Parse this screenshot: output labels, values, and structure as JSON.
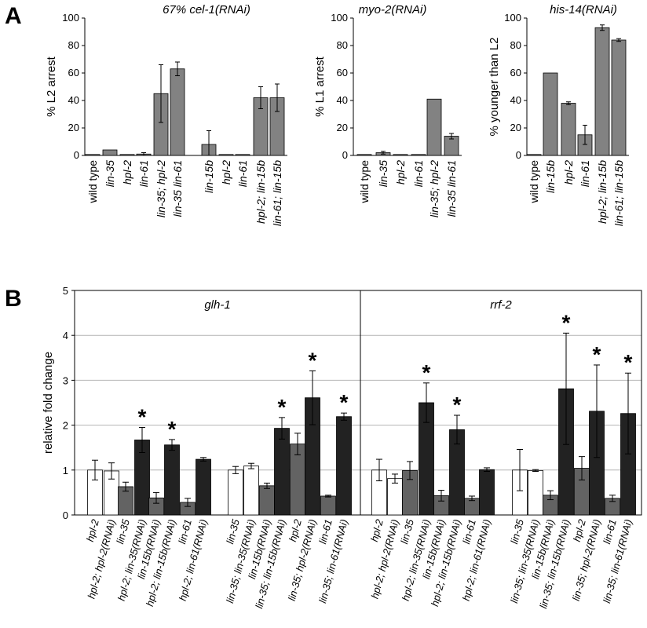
{
  "panel_labels": {
    "a": "A",
    "b": "B"
  },
  "chart_data": [
    {
      "id": "A1",
      "type": "bar",
      "title": "67% cel-1(RNAi)",
      "ylabel": "% L2 arrest",
      "ylim": [
        0,
        100
      ],
      "yticks": [
        "0",
        "20",
        "40",
        "60",
        "80",
        "100"
      ],
      "categories": [
        "wild type",
        "lin-35",
        "hpl-2",
        "lin-61",
        "lin-35; hpl-2",
        "lin-35 lin-61",
        "lin-15b",
        "hpl-2",
        "lin-61",
        "hpl-2; lin-15b",
        "lin-61; lin-15b"
      ],
      "values": [
        0,
        4,
        0,
        1,
        45,
        63,
        8,
        0,
        0,
        42,
        42
      ],
      "errors": [
        0,
        0,
        0,
        1,
        21,
        5,
        10,
        0,
        0,
        8,
        10
      ],
      "grid": false
    },
    {
      "id": "A2",
      "type": "bar",
      "title": "myo-2(RNAi)",
      "ylabel": "% L1 arrest",
      "ylim": [
        0,
        100
      ],
      "yticks": [
        "0",
        "20",
        "40",
        "60",
        "80",
        "100"
      ],
      "categories": [
        "wild type",
        "lin-35",
        "hpl-2",
        "lin-61",
        "lin-35; hpl-2",
        "lin-35 lin-61"
      ],
      "values": [
        0,
        2,
        0,
        0,
        41,
        14
      ],
      "errors": [
        0,
        1,
        0,
        0,
        0,
        2
      ],
      "grid": false
    },
    {
      "id": "A3",
      "type": "bar",
      "title": "his-14(RNAi)",
      "ylabel": "% younger than L2",
      "ylim": [
        0,
        100
      ],
      "yticks": [
        "0",
        "20",
        "40",
        "60",
        "80",
        "100"
      ],
      "categories": [
        "wild type",
        "lin-15b",
        "hpl-2",
        "lin-61",
        "hpl-2; lin-15b",
        "lin-61; lin-15b"
      ],
      "values": [
        0,
        60,
        38,
        15,
        93,
        84
      ],
      "errors": [
        0,
        0,
        1,
        7,
        2,
        1
      ],
      "grid": false
    },
    {
      "id": "B",
      "type": "bar",
      "ylabel": "relative fold change",
      "ylim": [
        0,
        5
      ],
      "yticks": [
        "0",
        "1",
        "2",
        "3",
        "4",
        "5"
      ],
      "grid": true,
      "panels": [
        {
          "title": "glh-1",
          "groups": [
            {
              "categories": [
                "hpl-2",
                "hpl-2; hpl-2(RNAi)",
                "lin-35",
                "hpl-2; lin-35(RNAi)",
                "lin-15b(RNAi)",
                "hpl-2; lin-15b(RNAi)",
                "lin-61",
                "hpl-2; lin-61(RNAi)"
              ],
              "values": [
                1.0,
                0.98,
                0.63,
                1.67,
                0.38,
                1.56,
                0.28,
                1.24
              ],
              "errors": [
                0.22,
                0.18,
                0.1,
                0.28,
                0.12,
                0.12,
                0.09,
                0.04
              ],
              "fills": [
                "white",
                "white",
                "gray",
                "black",
                "gray",
                "black",
                "gray",
                "black"
              ],
              "stars": [
                false,
                false,
                false,
                true,
                false,
                true,
                false,
                false
              ]
            },
            {
              "categories": [
                "lin-35",
                "lin-35; lin-35(RNAi)",
                "lin-15b(RNAi)",
                "lin-35; lin-15b(RNAi)",
                "hpl-2",
                "lin-35; hpl-2(RNAi)",
                "lin-61",
                "lin-35; lin-61(RNAi)"
              ],
              "values": [
                1.0,
                1.09,
                0.65,
                1.93,
                1.58,
                2.61,
                0.42,
                2.19
              ],
              "errors": [
                0.08,
                0.06,
                0.06,
                0.24,
                0.24,
                0.6,
                0.02,
                0.08
              ],
              "fills": [
                "white",
                "white",
                "gray",
                "black",
                "gray",
                "black",
                "gray",
                "black"
              ],
              "stars": [
                false,
                false,
                false,
                true,
                false,
                true,
                false,
                true
              ]
            }
          ]
        },
        {
          "title": "rrf-2",
          "groups": [
            {
              "categories": [
                "hpl-2",
                "hpl-2; hpl-2(RNAi)",
                "lin-35",
                "hpl-2; lin-35(RNAi)",
                "lin-15b(RNAi)",
                "hpl-2; lin-15b(RNAi)",
                "lin-61",
                "hpl-2; lin-61(RNAi)"
              ],
              "values": [
                1.0,
                0.81,
                0.99,
                2.5,
                0.43,
                1.9,
                0.37,
                1.01
              ],
              "errors": [
                0.24,
                0.1,
                0.2,
                0.44,
                0.12,
                0.32,
                0.05,
                0.04
              ],
              "fills": [
                "white",
                "white",
                "gray",
                "black",
                "gray",
                "black",
                "gray",
                "black"
              ],
              "stars": [
                false,
                false,
                false,
                true,
                false,
                true,
                false,
                false
              ]
            },
            {
              "categories": [
                "lin-35",
                "lin-35; lin-35(RNAi)",
                "lin-15b(RNAi)",
                "lin-35; lin-15b(RNAi)",
                "hpl-2",
                "lin-35; hpl-2(RNAi)",
                "lin-61",
                "lin-35; lin-61(RNAi)"
              ],
              "values": [
                1.0,
                0.99,
                0.44,
                2.81,
                1.04,
                2.31,
                0.37,
                2.26
              ],
              "errors": [
                0.46,
                0.02,
                0.1,
                1.24,
                0.26,
                1.03,
                0.07,
                0.9
              ],
              "fills": [
                "white",
                "white",
                "gray",
                "black",
                "gray",
                "black",
                "gray",
                "black"
              ],
              "stars": [
                false,
                false,
                false,
                true,
                false,
                true,
                false,
                true
              ]
            }
          ]
        }
      ]
    }
  ],
  "star_symbol": "*"
}
